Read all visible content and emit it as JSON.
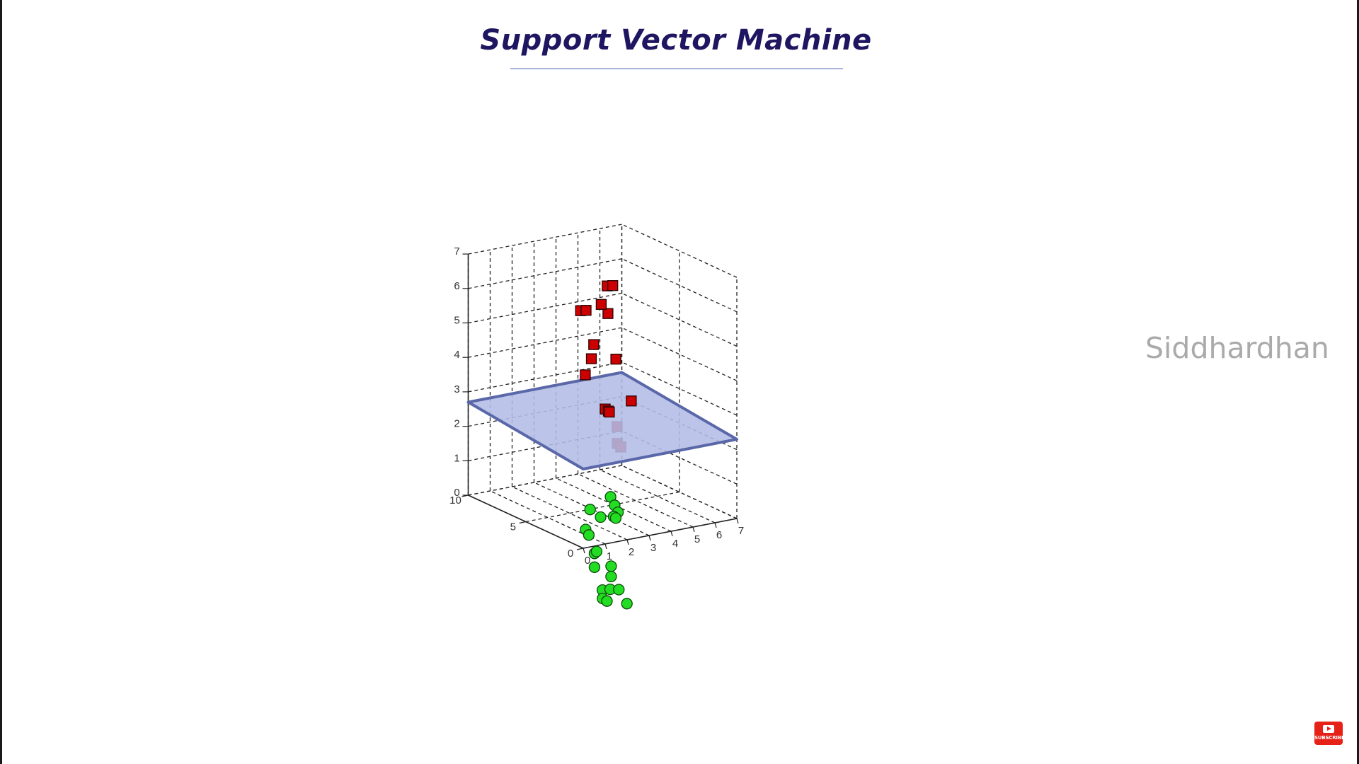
{
  "slide": {
    "title": "Support Vector Machine",
    "watermark": "Siddhardhan",
    "subscribe_label": "SUBSCRIBE",
    "subscribe_icon": "youtube-play-icon"
  },
  "colors": {
    "title": "#1e1660",
    "class_a_marker": "#cc0000",
    "class_b_marker": "#22dd22",
    "hyperplane_fill": "#b3bce6",
    "hyperplane_edge": "#5a67a8",
    "watermark": "#aaaaaa",
    "subscribe": "#e62117"
  },
  "chart_data": {
    "type": "scatter",
    "projection": "3d",
    "title": "",
    "xlabel": "",
    "ylabel": "",
    "zlabel": "",
    "xlim": [
      0,
      7
    ],
    "ylim": [
      0,
      10
    ],
    "zlim": [
      0,
      7
    ],
    "x_ticks": [
      "0",
      "1",
      "2",
      "3",
      "4",
      "5",
      "6",
      "7"
    ],
    "y_ticks": [
      "0",
      "5",
      "10"
    ],
    "z_ticks": [
      "0",
      "1",
      "2",
      "3",
      "4",
      "5",
      "6",
      "7"
    ],
    "grid": true,
    "series": [
      {
        "marker": "square",
        "color": "#cc0000",
        "points": [
          [
            3.9,
            4.6,
            4.3
          ],
          [
            4.9,
            7.2,
            5.1
          ],
          [
            4.2,
            7.1,
            4.3
          ],
          [
            3.5,
            6.5,
            3.6
          ],
          [
            3.2,
            4.2,
            3.0
          ],
          [
            3.4,
            4.3,
            2.9
          ],
          [
            3.6,
            4.6,
            2.8
          ],
          [
            3.8,
            4.3,
            2.4
          ],
          [
            3.6,
            3.9,
            2.0
          ],
          [
            3.7,
            3.8,
            1.9
          ],
          [
            4.7,
            9.2,
            4.9
          ],
          [
            4.9,
            9.1,
            4.9
          ],
          [
            5.6,
            8.6,
            5.6
          ],
          [
            5.8,
            8.5,
            5.6
          ],
          [
            5.8,
            9.5,
            4.9
          ],
          [
            5.3,
            9.4,
            3.4
          ],
          [
            4.6,
            4.6,
            3.0
          ]
        ]
      },
      {
        "marker": "circle",
        "color": "#22dd22",
        "points": [
          [
            3.5,
            4.3,
            0.4
          ],
          [
            3.2,
            4.6,
            -0.2
          ],
          [
            2.2,
            3.6,
            0.3
          ],
          [
            2.1,
            3.8,
            -0.3
          ],
          [
            2.3,
            3.9,
            -0.5
          ],
          [
            2.4,
            3.6,
            -1.0
          ],
          [
            2.6,
            3.8,
            -1.0
          ],
          [
            2.4,
            3.6,
            -1.4
          ],
          [
            4.0,
            4.9,
            0.0
          ],
          [
            4.1,
            4.8,
            -0.2
          ],
          [
            3.9,
            4.8,
            -0.3
          ],
          [
            4.1,
            5.0,
            -0.4
          ],
          [
            3.0,
            3.3,
            -1.4
          ],
          [
            3.0,
            3.3,
            -1.7
          ],
          [
            2.5,
            3.1,
            -2.0
          ],
          [
            2.8,
            3.0,
            -2.0
          ],
          [
            3.3,
            3.2,
            -2.1
          ],
          [
            2.4,
            2.9,
            -2.2
          ],
          [
            2.6,
            2.9,
            -2.3
          ],
          [
            3.3,
            2.5,
            -2.4
          ]
        ]
      }
    ],
    "hyperplane": {
      "corners": [
        [
          0,
          10,
          2.7
        ],
        [
          7,
          10,
          2.7
        ],
        [
          7,
          0,
          2.3
        ],
        [
          0,
          0,
          2.3
        ]
      ],
      "color": "#b3bce6"
    }
  }
}
